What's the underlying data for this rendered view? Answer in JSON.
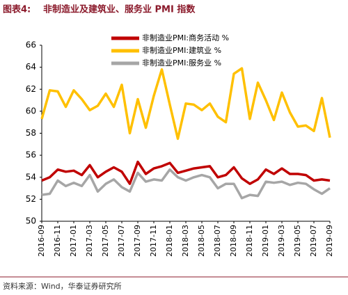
{
  "chart_data": {
    "type": "line",
    "figure_label": "图表4:",
    "title": "非制造业及建筑业、服务业 PMI 指数",
    "source": "资料来源：Wind，华泰证券研究所",
    "categories": [
      "2016-09",
      null,
      "2016-11",
      null,
      "2017-01",
      null,
      "2017-03",
      null,
      "2017-05",
      null,
      "2017-07",
      null,
      "2017-09",
      null,
      "2017-11",
      null,
      "2018-01",
      null,
      "2018-03",
      null,
      "2018-05",
      null,
      "2018-07",
      null,
      "2018-09",
      null,
      "2018-11",
      null,
      "2019-01",
      null,
      "2019-03",
      null,
      "2019-05",
      null,
      "2019-07",
      null,
      "2019-09"
    ],
    "series": [
      {
        "name": "非制造业PMI:商务活动 %",
        "color": "#c00000",
        "values": [
          53.7,
          54.0,
          54.7,
          54.5,
          54.6,
          54.2,
          55.1,
          54.0,
          54.5,
          54.9,
          54.5,
          53.4,
          55.4,
          54.3,
          54.8,
          55.0,
          55.3,
          54.4,
          54.6,
          54.8,
          54.9,
          55.0,
          54.0,
          54.2,
          54.9,
          53.9,
          53.4,
          53.8,
          54.7,
          54.3,
          54.8,
          54.3,
          54.3,
          54.2,
          53.7,
          53.8,
          53.7
        ]
      },
      {
        "name": "非制造业PMI:建筑业 %",
        "color": "#ffc000",
        "values": [
          59.3,
          61.9,
          61.8,
          60.4,
          61.9,
          61.1,
          60.1,
          60.5,
          61.6,
          60.4,
          62.4,
          58.0,
          61.1,
          58.5,
          61.4,
          63.8,
          60.6,
          57.5,
          60.7,
          60.6,
          60.1,
          60.7,
          59.5,
          59.0,
          63.4,
          63.9,
          59.3,
          62.6,
          61.0,
          59.2,
          61.7,
          59.9,
          58.6,
          58.7,
          58.2,
          61.2,
          57.6
        ]
      },
      {
        "name": "非制造业PMI:服务业 %",
        "color": "#a6a6a6",
        "values": [
          52.4,
          52.5,
          53.7,
          53.2,
          53.5,
          53.2,
          54.2,
          52.7,
          53.4,
          53.8,
          53.1,
          52.7,
          54.4,
          53.6,
          53.8,
          53.7,
          54.7,
          54.0,
          53.7,
          54.0,
          54.2,
          54.0,
          53.0,
          53.4,
          53.4,
          52.1,
          52.4,
          52.3,
          53.6,
          53.5,
          53.6,
          53.3,
          53.5,
          53.4,
          52.9,
          52.5,
          53.0
        ]
      }
    ],
    "ylim": [
      50,
      66
    ],
    "yticks": [
      50,
      52,
      54,
      56,
      58,
      60,
      62,
      64,
      66
    ],
    "grid": false,
    "legend": "top"
  }
}
